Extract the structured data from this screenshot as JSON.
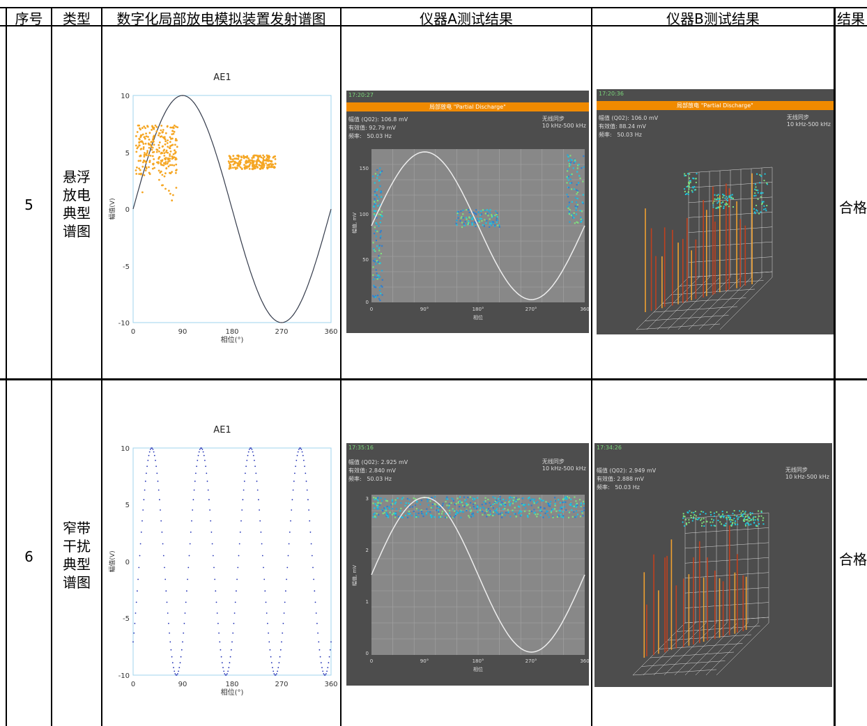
{
  "table": {
    "headers": [
      "序号",
      "类型",
      "数字化局部放电模拟装置发射谱图",
      "仪器A测试结果",
      "仪器B测试结果",
      "结果"
    ],
    "rows": [
      {
        "index": "5",
        "type_lines": [
          "悬浮",
          "放电",
          "典型",
          "谱图"
        ],
        "result": "合格",
        "ae_chart": {
          "title": "AE1",
          "ylabel": "幅值(V)",
          "xlabel": "相位(°)",
          "x_ticks": [
            "0",
            "90",
            "180",
            "270",
            "360"
          ],
          "y_ticks": [
            "10",
            "5",
            "0",
            "-5",
            "-10"
          ]
        },
        "instrument_a": {
          "time": "17:20:27",
          "mode": "局部放电 \"Partial Discharge\"",
          "info": "幅值 (Q02): 106.8 mV\n有效值: 92.79 mV\n频率:   50.03 Hz",
          "info_right": "无线同步\n10 kHz-500 kHz",
          "y_ticks": [
            "150",
            "100",
            "50",
            "0"
          ],
          "x_ticks": [
            "0",
            "90°",
            "180°",
            "270°",
            "360"
          ],
          "ylabel": "幅值, mV",
          "xlabel": "相位"
        },
        "instrument_b": {
          "time": "17:20:36",
          "mode": "局部放电 \"Partial Discharge\"",
          "info": "幅值 (Q02): 106.0 mV\n有效值: 88.24 mV\n频率:   50.03 Hz",
          "info_right": "无线同步\n10 kHz-500 kHz"
        }
      },
      {
        "index": "6",
        "type_lines": [
          "窄带",
          "干扰",
          "典型",
          "谱图"
        ],
        "result": "合格",
        "ae_chart": {
          "title": "AE1",
          "ylabel": "幅值(V)",
          "xlabel": "相位(°)",
          "x_ticks": [
            "0",
            "90",
            "180",
            "270",
            "360"
          ],
          "y_ticks": [
            "10",
            "5",
            "0",
            "-5",
            "-10"
          ]
        },
        "instrument_a": {
          "time": "17:35:16",
          "mode": "",
          "info": "幅值 (Q02): 2.925 mV\n有效值: 2.840 mV\n频率:   50.03 Hz",
          "info_right": "无线同步\n10 kHz-500 kHz",
          "y_ticks": [
            "3",
            "2",
            "1",
            "0"
          ],
          "x_ticks": [
            "0",
            "90°",
            "180°",
            "270°",
            "360"
          ],
          "ylabel": "幅值, mV",
          "xlabel": "相位"
        },
        "instrument_b": {
          "time": "17:34:26",
          "mode": "",
          "info": "幅值 (Q02): 2.949 mV\n有效值: 2.888 mV\n频率:   50.03 Hz",
          "info_right": "无线同步\n10 kHz-500 kHz"
        }
      }
    ]
  },
  "colors": {
    "pd_scatter": "#f5a623",
    "sine_line": "#333a4a",
    "narrowband_dots": "#1f2fb4",
    "panel_bg": "#4d4d4d",
    "panel_bar": "#f08a00",
    "plot_bg": "#888888",
    "heat_cyan": "#1ec8e0",
    "stem_red": "#c0401f",
    "stem_orange": "#f0a030"
  }
}
